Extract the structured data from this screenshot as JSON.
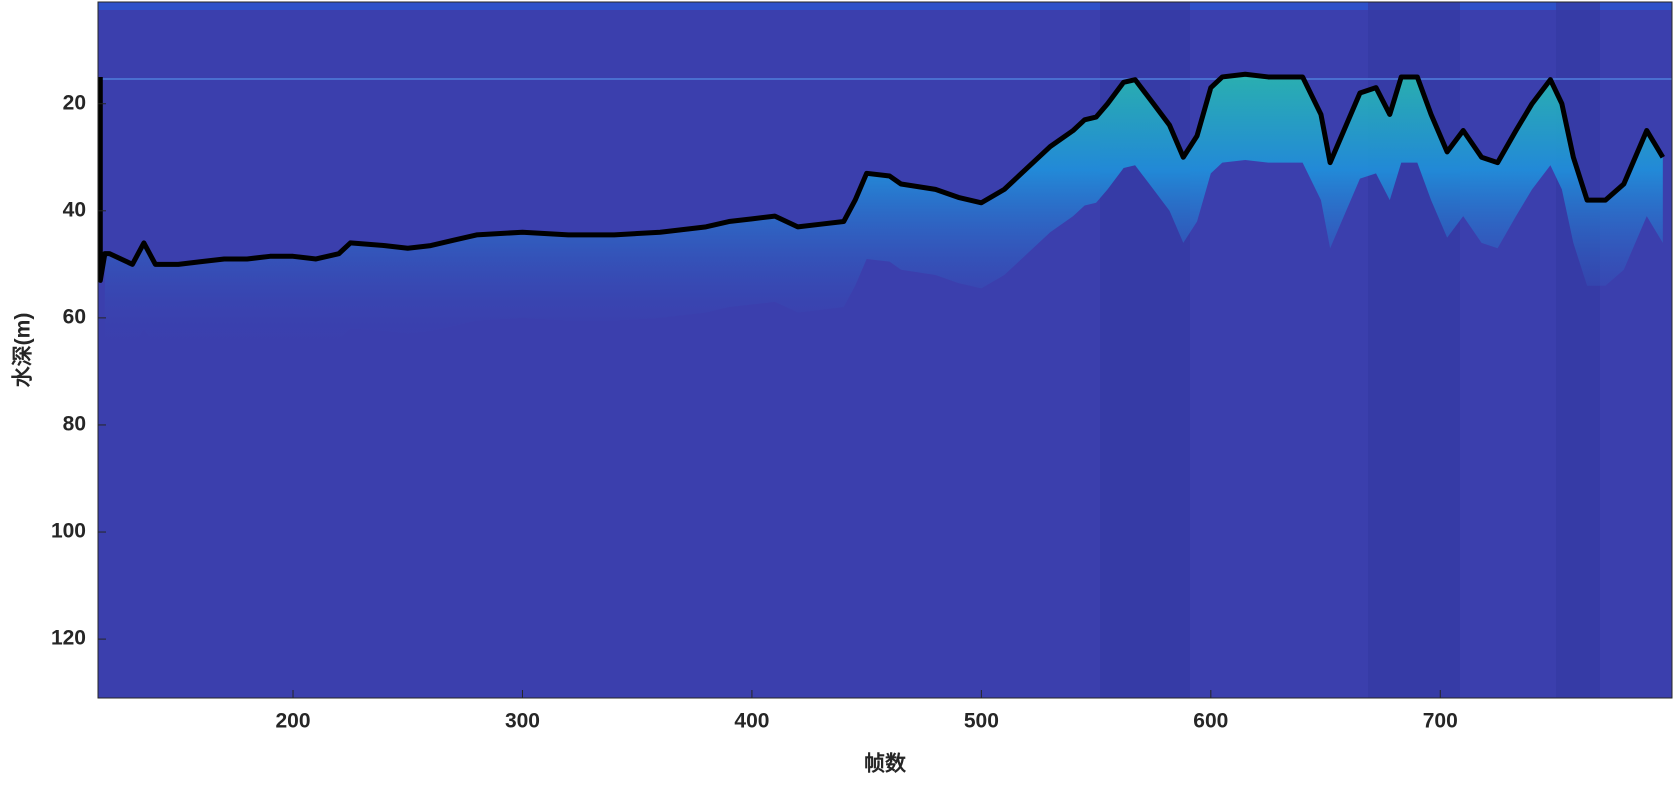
{
  "chart_data": {
    "type": "line",
    "xlabel": "帧数",
    "ylabel": "水深(m)",
    "xlim": [
      115,
      801
    ],
    "ylim": [
      1,
      131
    ],
    "y_inverted": true,
    "xticks": [
      200,
      300,
      400,
      500,
      600,
      700
    ],
    "yticks": [
      20,
      40,
      60,
      80,
      100,
      120
    ],
    "series": [
      {
        "color": "#000000",
        "x": [
          116,
          116,
          118,
          120,
          130,
          135,
          140,
          150,
          160,
          170,
          180,
          190,
          200,
          210,
          220,
          225,
          240,
          250,
          260,
          270,
          280,
          300,
          320,
          340,
          360,
          380,
          390,
          400,
          410,
          420,
          430,
          440,
          445,
          450,
          460,
          465,
          480,
          490,
          500,
          510,
          520,
          530,
          540,
          545,
          550,
          555,
          562,
          567,
          575,
          582,
          588,
          594,
          600,
          605,
          615,
          625,
          640,
          648,
          652,
          658,
          665,
          672,
          678,
          683,
          690,
          696,
          703,
          710,
          718,
          725,
          733,
          740,
          748,
          753,
          758,
          764,
          772,
          780,
          790,
          797
        ],
        "values": [
          15,
          53,
          48,
          48,
          50,
          46,
          50,
          50,
          49.5,
          49,
          49,
          48.5,
          48.5,
          49,
          48,
          46,
          46.5,
          47,
          46.5,
          45.5,
          44.5,
          44,
          44.5,
          44.5,
          44,
          43,
          42,
          41.5,
          41,
          43,
          42.5,
          42,
          38,
          33,
          33.5,
          35,
          36,
          37.5,
          38.5,
          36,
          32,
          28,
          25,
          23,
          22.5,
          20,
          16,
          15.5,
          20,
          24,
          30,
          26,
          17,
          15,
          14.5,
          15,
          15,
          22,
          31,
          25,
          18,
          17,
          22,
          15,
          15,
          22,
          29,
          25,
          30,
          31,
          25,
          20,
          15.5,
          20,
          30,
          38,
          38,
          35,
          25,
          30
        ]
      }
    ]
  }
}
